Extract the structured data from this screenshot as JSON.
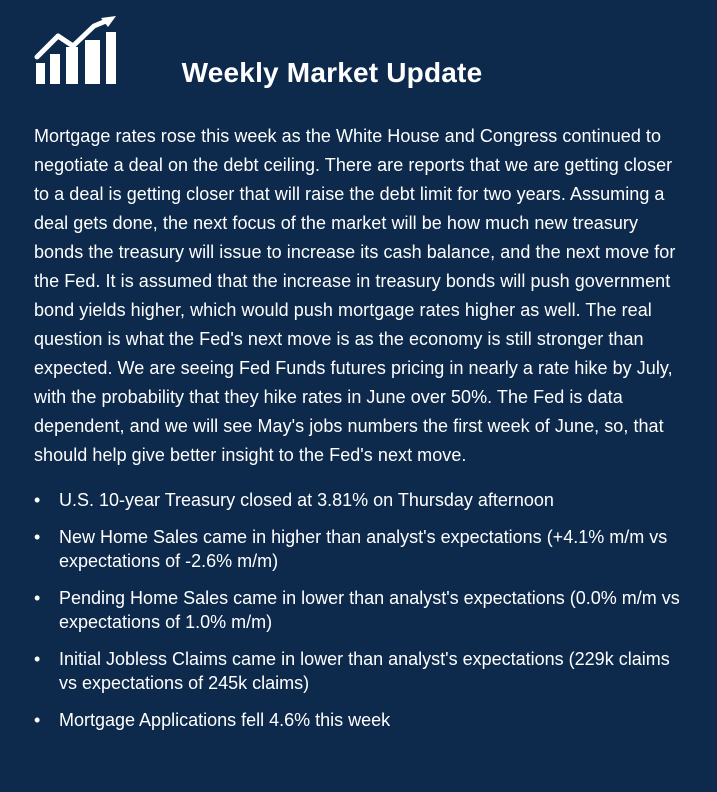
{
  "header": {
    "logo_icon": "rising-chart-icon",
    "title": "Weekly Market Update"
  },
  "content": {
    "paragraph": "Mortgage rates rose this week as the White House and Congress continued to negotiate a deal on the debt ceiling. There are reports that we are getting closer to a deal is getting closer that will raise the debt limit for two years. Assuming a deal gets done, the next focus of the market will be how much new treasury bonds the treasury will issue to increase its cash balance, and the next move for the Fed. It is assumed that the increase in treasury bonds will push government bond yields higher, which would push mortgage rates higher as well. The real question is what the Fed's next move is as the economy is still stronger than expected. We are seeing Fed Funds futures pricing in nearly a rate hike by July, with the probability that they hike rates in June over 50%. The Fed is data dependent, and we will see May's jobs numbers the first week of June, so, that should help give better insight to the Fed's next move.",
    "bullet_symbol": "•",
    "bullets": [
      "U.S. 10-year Treasury closed at 3.81% on Thursday afternoon",
      "New Home Sales came in higher than analyst's expectations (+4.1% m/m vs expectations of -2.6% m/m)",
      "Pending Home Sales came in lower than analyst's expectations (0.0% m/m vs expectations of 1.0% m/m)",
      "Initial Jobless Claims came in lower than analyst's expectations (229k claims vs expectations of 245k claims)",
      "Mortgage Applications fell 4.6% this week"
    ]
  },
  "colors": {
    "background": "#0d2a4c",
    "text": "#ffffff"
  }
}
